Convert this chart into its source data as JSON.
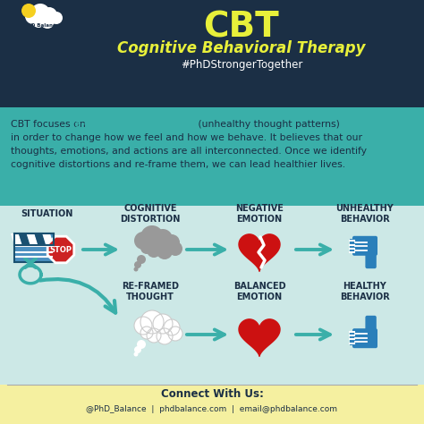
{
  "title_main": "CBT",
  "title_sub": "Cognitive Behavioral Therapy",
  "hashtag": "#PhDStrongerTogether",
  "header_bg": "#1b2f45",
  "teal_bg": "#3aafa9",
  "content_bg": "#cce8e6",
  "footer_bg": "#f5f0a0",
  "title_color": "#e8f03a",
  "subtitle_color": "#e8f03a",
  "hashtag_color": "#ffffff",
  "body_normal_color": "#1b2f45",
  "body_highlight_color": "#3aafa9",
  "arrow_color": "#3aafa9",
  "label_color": "#1b2f45",
  "connect_title_color": "#1b2f45",
  "connect_text_color": "#1b2f45",
  "row1_labels": [
    "SITUATION",
    "COGNITIVE\nDISTORTION",
    "NEGATIVE\nEMOTION",
    "UNHEALTHY\nBEHAVIOR"
  ],
  "row2_labels": [
    "RE-FRAMED\nTHOUGHT",
    "BALANCED\nEMOTION",
    "HEALTHY\nBEHAVIOR"
  ],
  "footer_title": "Connect With Us:",
  "footer_text": "@PhD_Balance  |  phdbalance.com  |  email@phdbalance.com",
  "clap_color": "#4a8fc0",
  "clap_dark": "#1a5070",
  "stop_color": "#cc2222",
  "heart_color": "#cc1111",
  "thumb_color": "#2a7fba",
  "cloud_gray": "#999999",
  "cloud_white": "#ffffff",
  "scissor_color": "#3aafa9"
}
